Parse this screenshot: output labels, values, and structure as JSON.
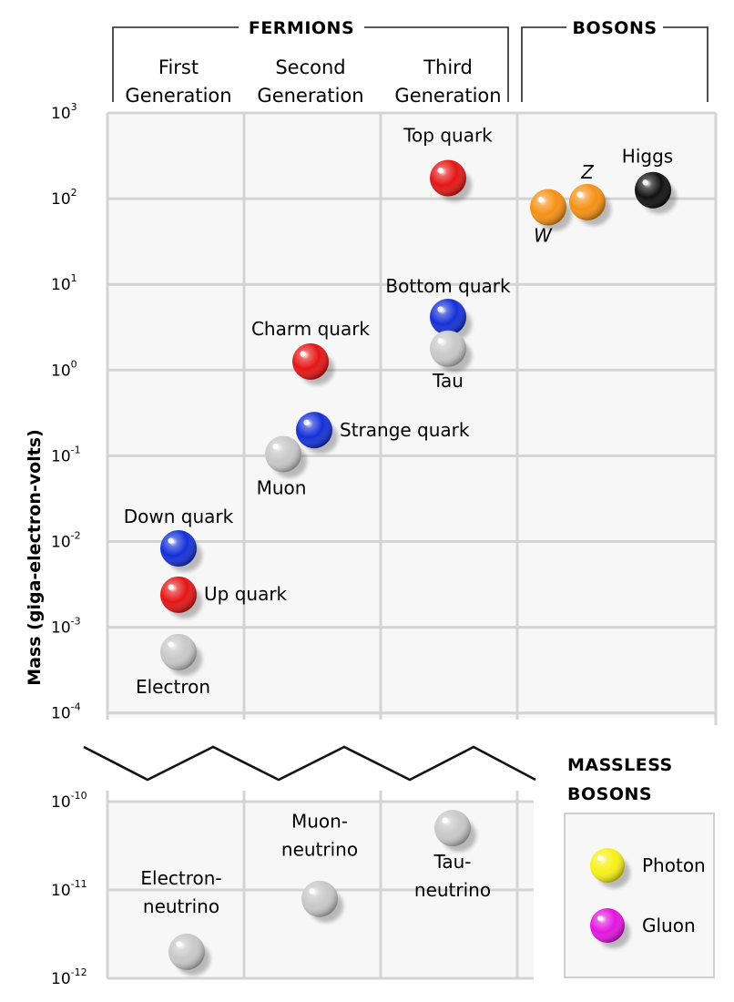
{
  "chart_data": {
    "type": "scatter",
    "title": "",
    "ylabel": "Mass (giga-electron-volts)",
    "yscale": "log",
    "upper_range": [
      -4,
      3
    ],
    "lower_range": [
      -12,
      -10
    ],
    "headers": {
      "fermions": "FERMIONS",
      "bosons": "BOSONS",
      "massless_bosons": [
        "MASSLESS",
        "BOSONS"
      ]
    },
    "columns": [
      {
        "key": "gen1",
        "lines": [
          "First",
          "Generation"
        ]
      },
      {
        "key": "gen2",
        "lines": [
          "Second",
          "Generation"
        ]
      },
      {
        "key": "gen3",
        "lines": [
          "Third",
          "Generation"
        ]
      },
      {
        "key": "bosons",
        "lines": []
      }
    ],
    "ticks": [
      {
        "exp": 3,
        "base": "10",
        "sup": "3"
      },
      {
        "exp": 2,
        "base": "10",
        "sup": "2"
      },
      {
        "exp": 1,
        "base": "10",
        "sup": "1"
      },
      {
        "exp": 0,
        "base": "10",
        "sup": "0"
      },
      {
        "exp": -1,
        "base": "10",
        "sup": "-1"
      },
      {
        "exp": -2,
        "base": "10",
        "sup": "-2"
      },
      {
        "exp": -3,
        "base": "10",
        "sup": "-3"
      },
      {
        "exp": -4,
        "base": "10",
        "sup": "-4"
      },
      {
        "exp": -10,
        "base": "10",
        "sup": "-10"
      },
      {
        "exp": -11,
        "base": "10",
        "sup": "-11"
      },
      {
        "exp": -12,
        "base": "10",
        "sup": "-12"
      }
    ],
    "particles": [
      {
        "id": "top-quark",
        "label": "Top quark",
        "column": "gen3",
        "log_mass": 2.24,
        "color": "#e51515",
        "label_pos": "above"
      },
      {
        "id": "bottom-quark",
        "label": "Bottom quark",
        "column": "gen3",
        "log_mass": 0.62,
        "color": "#1430d8",
        "label_pos": "above"
      },
      {
        "id": "tau",
        "label": "Tau",
        "column": "gen3",
        "log_mass": 0.25,
        "color": "#c8c8c8",
        "label_pos": "below"
      },
      {
        "id": "charm-quark",
        "label": "Charm quark",
        "column": "gen2",
        "log_mass": 0.1,
        "color": "#e51515",
        "label_pos": "above"
      },
      {
        "id": "strange-quark",
        "label": "Strange quark",
        "column": "gen2",
        "log_mass": -0.7,
        "color": "#1430d8",
        "label_pos": "right"
      },
      {
        "id": "muon",
        "label": "Muon",
        "column": "gen2",
        "log_mass": -0.98,
        "color": "#c8c8c8",
        "label_pos": "below"
      },
      {
        "id": "down-quark",
        "label": "Down quark",
        "column": "gen1",
        "log_mass": -2.08,
        "color": "#1430d8",
        "label_pos": "above"
      },
      {
        "id": "up-quark",
        "label": "Up quark",
        "column": "gen1",
        "log_mass": -2.62,
        "color": "#e51515",
        "label_pos": "right"
      },
      {
        "id": "electron",
        "label": "Electron",
        "column": "gen1",
        "log_mass": -3.29,
        "color": "#c8c8c8",
        "label_pos": "below"
      },
      {
        "id": "w-boson",
        "label": "W",
        "column": "bosons",
        "log_mass": 1.9,
        "color": "#f59114",
        "label_pos": "below",
        "italic": true
      },
      {
        "id": "z-boson",
        "label": "Z",
        "column": "bosons",
        "log_mass": 1.96,
        "color": "#f59114",
        "label_pos": "above",
        "italic": true
      },
      {
        "id": "higgs",
        "label": "Higgs",
        "column": "bosons",
        "log_mass": 2.1,
        "color": "#111111",
        "label_pos": "above"
      },
      {
        "id": "electron-neutrino",
        "label": "Electron-\nneutrino",
        "column": "gen1",
        "log_mass": -11.7,
        "color": "#c8c8c8",
        "label_pos": "above"
      },
      {
        "id": "muon-neutrino",
        "label": "Muon-\nneutrino",
        "column": "gen2",
        "log_mass": -11.1,
        "color": "#c8c8c8",
        "label_pos": "above"
      },
      {
        "id": "tau-neutrino",
        "label": "Tau-\nneutrino",
        "column": "gen3",
        "log_mass": -10.3,
        "color": "#c8c8c8",
        "label_pos": "below"
      }
    ],
    "massless": [
      {
        "id": "photon",
        "label": "Photon",
        "color": "#f7f016"
      },
      {
        "id": "gluon",
        "label": "Gluon",
        "color": "#e514e0"
      }
    ]
  }
}
